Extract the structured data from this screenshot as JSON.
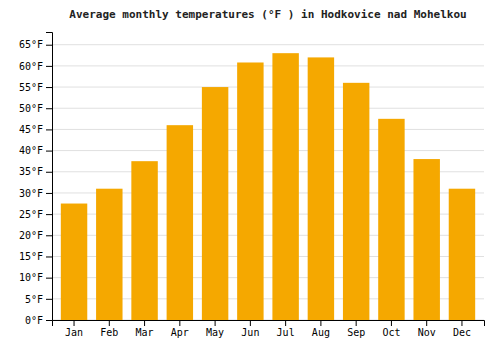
{
  "chart_data": {
    "type": "bar",
    "title": "Average monthly temperatures (°F ) in Hodkovice nad Mohelkou",
    "categories": [
      "Jan",
      "Feb",
      "Mar",
      "Apr",
      "May",
      "Jun",
      "Jul",
      "Aug",
      "Sep",
      "Oct",
      "Nov",
      "Dec"
    ],
    "values": [
      27.5,
      31.0,
      37.5,
      46.0,
      55.0,
      60.8,
      63.0,
      62.0,
      56.0,
      47.5,
      38.0,
      31.0
    ],
    "color": "#F5A800",
    "ylim": [
      0,
      68
    ],
    "yticks": [
      {
        "value": 0,
        "label": "0°F"
      },
      {
        "value": 5,
        "label": "5°F"
      },
      {
        "value": 10,
        "label": "10°F"
      },
      {
        "value": 15,
        "label": "15°F"
      },
      {
        "value": 20,
        "label": "20°F"
      },
      {
        "value": 25,
        "label": "25°F"
      },
      {
        "value": 30,
        "label": "30°F"
      },
      {
        "value": 35,
        "label": "35°F"
      },
      {
        "value": 40,
        "label": "40°F"
      },
      {
        "value": 45,
        "label": "45°F"
      },
      {
        "value": 50,
        "label": "50°F"
      },
      {
        "value": 55,
        "label": "55°F"
      },
      {
        "value": 60,
        "label": "60°F"
      },
      {
        "value": 65,
        "label": "65°F"
      }
    ],
    "grid": true
  }
}
